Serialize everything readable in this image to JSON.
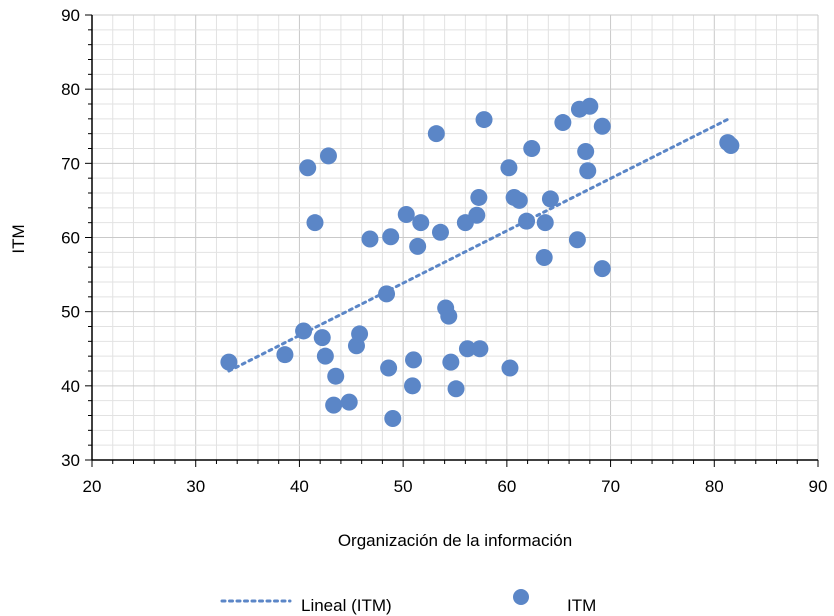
{
  "chart_data": {
    "type": "scatter",
    "xlabel": "Organización de la información",
    "ylabel": "ITM",
    "xlim": [
      20,
      90
    ],
    "ylim": [
      30,
      90
    ],
    "x_ticks": [
      20,
      30,
      40,
      50,
      60,
      70,
      80,
      90
    ],
    "y_ticks": [
      30,
      40,
      50,
      60,
      70,
      80,
      90
    ],
    "grid": true,
    "legend_position": "bottom",
    "series": [
      {
        "name": "ITM",
        "color": "#5b86c7",
        "marker": "circle",
        "points": [
          {
            "x": 33.2,
            "y": 43.2
          },
          {
            "x": 38.6,
            "y": 44.2
          },
          {
            "x": 40.4,
            "y": 47.4
          },
          {
            "x": 40.8,
            "y": 69.4
          },
          {
            "x": 41.5,
            "y": 62.0
          },
          {
            "x": 42.2,
            "y": 46.5
          },
          {
            "x": 42.5,
            "y": 44.0
          },
          {
            "x": 42.8,
            "y": 71.0
          },
          {
            "x": 43.5,
            "y": 41.3
          },
          {
            "x": 43.3,
            "y": 37.4
          },
          {
            "x": 44.8,
            "y": 37.8
          },
          {
            "x": 45.5,
            "y": 45.4
          },
          {
            "x": 45.8,
            "y": 47.0
          },
          {
            "x": 46.8,
            "y": 59.8
          },
          {
            "x": 48.4,
            "y": 52.4
          },
          {
            "x": 48.6,
            "y": 42.4
          },
          {
            "x": 48.8,
            "y": 60.1
          },
          {
            "x": 49.0,
            "y": 35.6
          },
          {
            "x": 50.3,
            "y": 63.1
          },
          {
            "x": 50.9,
            "y": 40.0
          },
          {
            "x": 51.0,
            "y": 43.5
          },
          {
            "x": 51.4,
            "y": 58.8
          },
          {
            "x": 51.7,
            "y": 62.0
          },
          {
            "x": 53.2,
            "y": 74.0
          },
          {
            "x": 53.6,
            "y": 60.7
          },
          {
            "x": 54.1,
            "y": 50.5
          },
          {
            "x": 54.4,
            "y": 49.4
          },
          {
            "x": 54.6,
            "y": 43.2
          },
          {
            "x": 55.1,
            "y": 39.6
          },
          {
            "x": 56.0,
            "y": 62.0
          },
          {
            "x": 56.2,
            "y": 45.0
          },
          {
            "x": 57.1,
            "y": 63.0
          },
          {
            "x": 57.3,
            "y": 65.4
          },
          {
            "x": 57.4,
            "y": 45.0
          },
          {
            "x": 57.8,
            "y": 75.9
          },
          {
            "x": 60.2,
            "y": 69.4
          },
          {
            "x": 60.3,
            "y": 42.4
          },
          {
            "x": 60.7,
            "y": 65.4
          },
          {
            "x": 61.2,
            "y": 65.0
          },
          {
            "x": 61.9,
            "y": 62.2
          },
          {
            "x": 62.4,
            "y": 72.0
          },
          {
            "x": 63.6,
            "y": 57.3
          },
          {
            "x": 63.7,
            "y": 62.0
          },
          {
            "x": 64.2,
            "y": 65.2
          },
          {
            "x": 65.4,
            "y": 75.5
          },
          {
            "x": 66.8,
            "y": 59.7
          },
          {
            "x": 67.0,
            "y": 77.3
          },
          {
            "x": 67.6,
            "y": 71.6
          },
          {
            "x": 67.8,
            "y": 69.0
          },
          {
            "x": 68.0,
            "y": 77.7
          },
          {
            "x": 69.2,
            "y": 75.0
          },
          {
            "x": 69.2,
            "y": 55.8
          },
          {
            "x": 81.3,
            "y": 72.8
          },
          {
            "x": 81.6,
            "y": 72.4
          }
        ]
      },
      {
        "name": "Lineal (ITM)",
        "type": "trendline",
        "style": "dotted",
        "color": "#5b86c7",
        "points": [
          {
            "x": 33.2,
            "y": 42.0
          },
          {
            "x": 81.4,
            "y": 76.0
          }
        ]
      }
    ]
  }
}
